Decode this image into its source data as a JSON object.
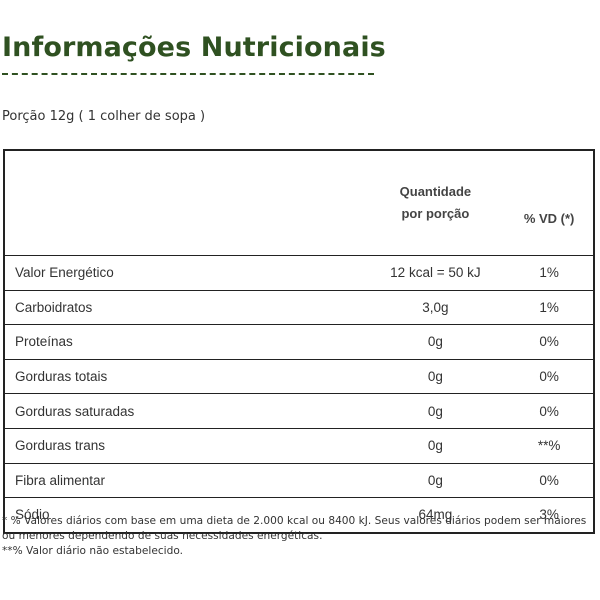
{
  "title": "Informações Nutricionais",
  "portion": "Porção 12g ( 1 colher de sopa )",
  "table": {
    "header": {
      "name": "",
      "quantity_line1": "Quantidade",
      "quantity_line2": "por porção",
      "vd": "% VD (*)"
    },
    "rows": [
      {
        "name": "Valor Energético",
        "quantity": "12 kcal = 50 kJ",
        "vd": "1%"
      },
      {
        "name": "Carboidratos",
        "quantity": "3,0g",
        "vd": "1%"
      },
      {
        "name": "Proteínas",
        "quantity": "0g",
        "vd": "0%"
      },
      {
        "name": "Gorduras totais",
        "quantity": "0g",
        "vd": "0%"
      },
      {
        "name": "Gorduras saturadas",
        "quantity": "0g",
        "vd": "0%"
      },
      {
        "name": "Gorduras trans",
        "quantity": "0g",
        "vd": "**%"
      },
      {
        "name": "Fibra alimentar",
        "quantity": "0g",
        "vd": "0%"
      },
      {
        "name": "Sódio",
        "quantity": "64mg",
        "vd": "3%"
      }
    ]
  },
  "footnotes": [
    "* % Valores diários com base em uma dieta de 2.000 kcal ou 8400 kJ. Seus valores diários podem ser maiores ou menores dependendo de suas necessidades energéticas.",
    "**% Valor diário não estabelecido."
  ],
  "colors": {
    "title": "#2f5121",
    "text": "#333333",
    "border": "#222222"
  }
}
